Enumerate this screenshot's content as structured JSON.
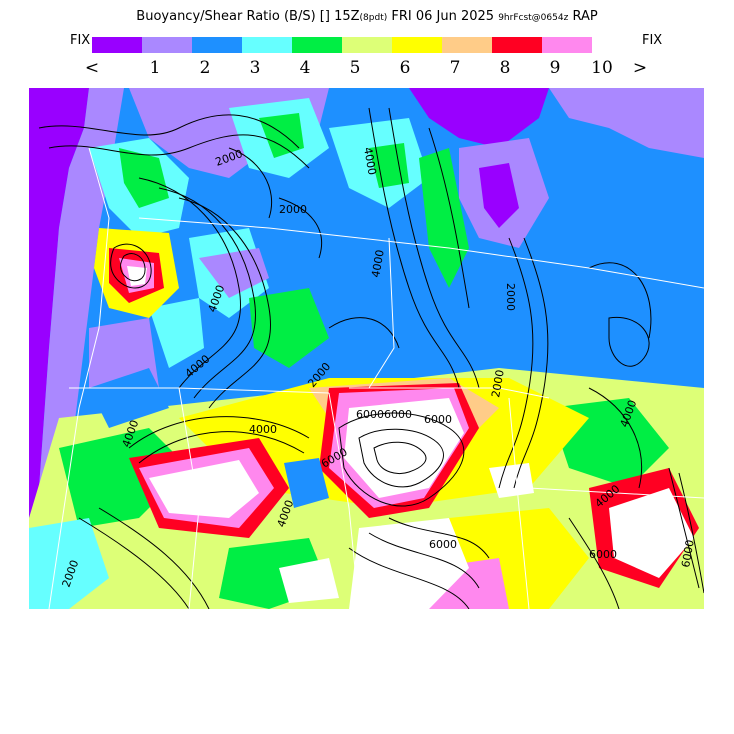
{
  "title": {
    "main": "Buoyancy/Shear Ratio (B/S) [] 15Z",
    "pdt": "(8pdt)",
    "date": "FRI 06 Jun 2025",
    "fcst": "9hrFcst@0654z",
    "model": "RAP"
  },
  "legend": {
    "fix_left": "FIX",
    "fix_right": "FIX",
    "less": "<",
    "greater": ">",
    "tick_labels": [
      "1",
      "2",
      "3",
      "4",
      "5",
      "6",
      "7",
      "8",
      "9",
      "10"
    ],
    "colors": [
      "#9900ff",
      "#aa88ff",
      "#1e90ff",
      "#66ffff",
      "#00ee44",
      "#ddff77",
      "#ffff00",
      "#ffcc88",
      "#ff0022",
      "#ff88ee"
    ]
  },
  "map": {
    "contour_labels": [
      "2000",
      "2000",
      "4000",
      "4000",
      "2000",
      "4000",
      "4000",
      "6000",
      "4000",
      "6000",
      "6000",
      "6000",
      "4000",
      "2000",
      "2000",
      "4000",
      "4000",
      "6000",
      "6000",
      "6000",
      "4000",
      "2000"
    ],
    "colors": {
      "ocean": "#9900ff",
      "land_base": "#1e90ff",
      "high_ratio": "#ffffff",
      "contour": "#000000",
      "boundary": "#ffffff"
    }
  }
}
